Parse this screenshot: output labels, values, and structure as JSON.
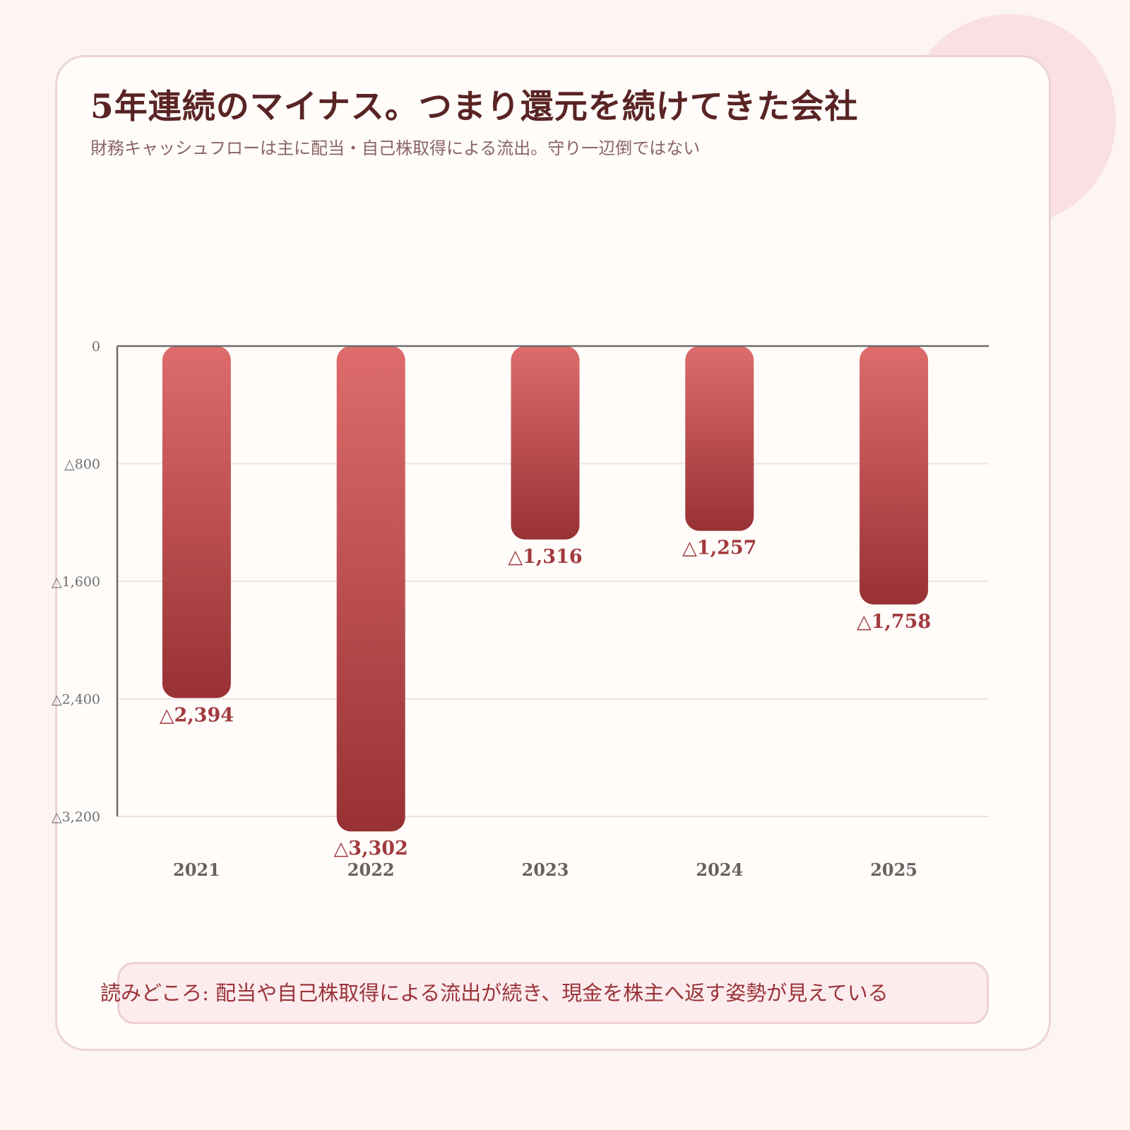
{
  "title": "5年連続のマイナス。つまり還元を続けてきた会社",
  "subtitle": "財務キャッシュフローは主に配当・自己株取得による流出。守り一辺倒ではない",
  "note": "読みどころ: 配当や自己株取得による流出が続き、現金を株主へ返す姿勢が見えている",
  "colors": {
    "bar_top": "#de6c6c",
    "bar_bottom": "#983134",
    "label": "#a23a3e",
    "axis": "#6b6b6b",
    "grid": "#f0e0e2"
  },
  "chart_data": {
    "type": "bar",
    "categories": [
      "2021",
      "2022",
      "2023",
      "2024",
      "2025"
    ],
    "values": [
      -2394,
      -3302,
      -1316,
      -1257,
      -1758
    ],
    "data_labels": [
      "△2,394",
      "△3,302",
      "△1,316",
      "△1,257",
      "△1,758"
    ],
    "ylim": [
      -3200,
      0
    ],
    "yticks": [
      0,
      -800,
      -1600,
      -2400,
      -3200
    ],
    "ytick_labels": [
      "0",
      "△800",
      "△1,600",
      "△2,400",
      "△3,200"
    ],
    "grid": true,
    "title": "",
    "xlabel": "",
    "ylabel": ""
  }
}
